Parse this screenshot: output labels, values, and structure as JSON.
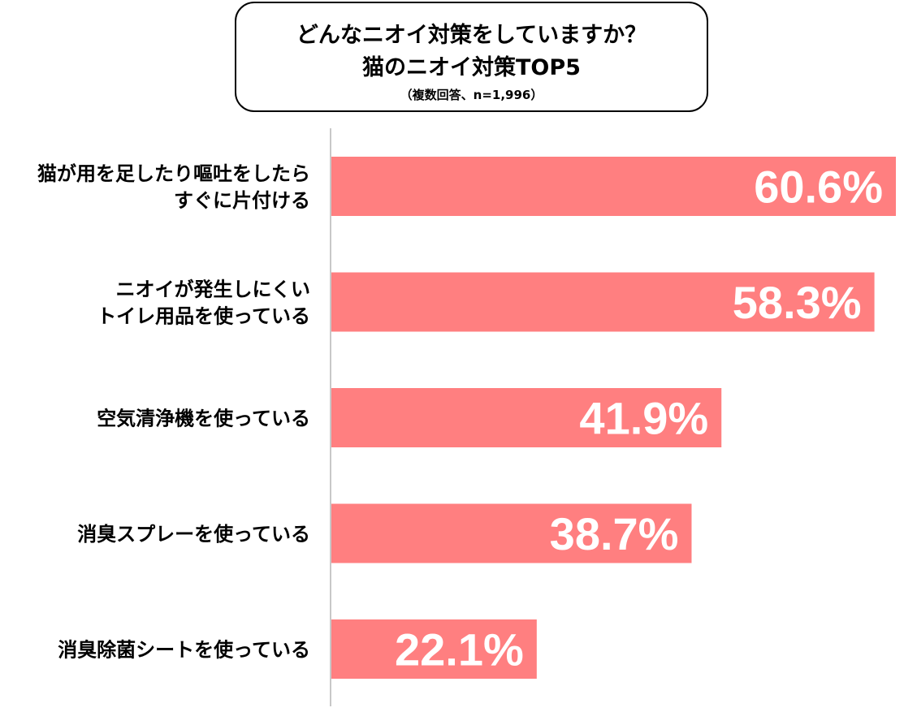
{
  "title": {
    "line1": "どんなニオイ対策をしていますか？",
    "line2": "猫のニオイ対策TOP5",
    "note": "（複数回答、n=1,996）"
  },
  "chart_data": {
    "type": "bar",
    "orientation": "horizontal",
    "categories": [
      [
        "猫が用を足したり嘔吐をしたら",
        "すぐに片付ける"
      ],
      [
        "ニオイが発生しにくい",
        "トイレ用品を使っている"
      ],
      [
        "空気清浄機を使っている"
      ],
      [
        "消臭スプレーを使っている"
      ],
      [
        "消臭除菌シートを使っている"
      ]
    ],
    "values": [
      60.6,
      58.3,
      41.9,
      38.7,
      22.1
    ],
    "value_labels": [
      "60.6%",
      "58.3%",
      "41.9%",
      "38.7%",
      "22.1%"
    ],
    "unit": "%",
    "xlim": [
      0,
      60.6
    ],
    "grid": false,
    "legend": "none",
    "colors": {
      "bar": "#ff7f80",
      "value_label": "#ffffff",
      "axis": "#c8c8c8"
    }
  }
}
